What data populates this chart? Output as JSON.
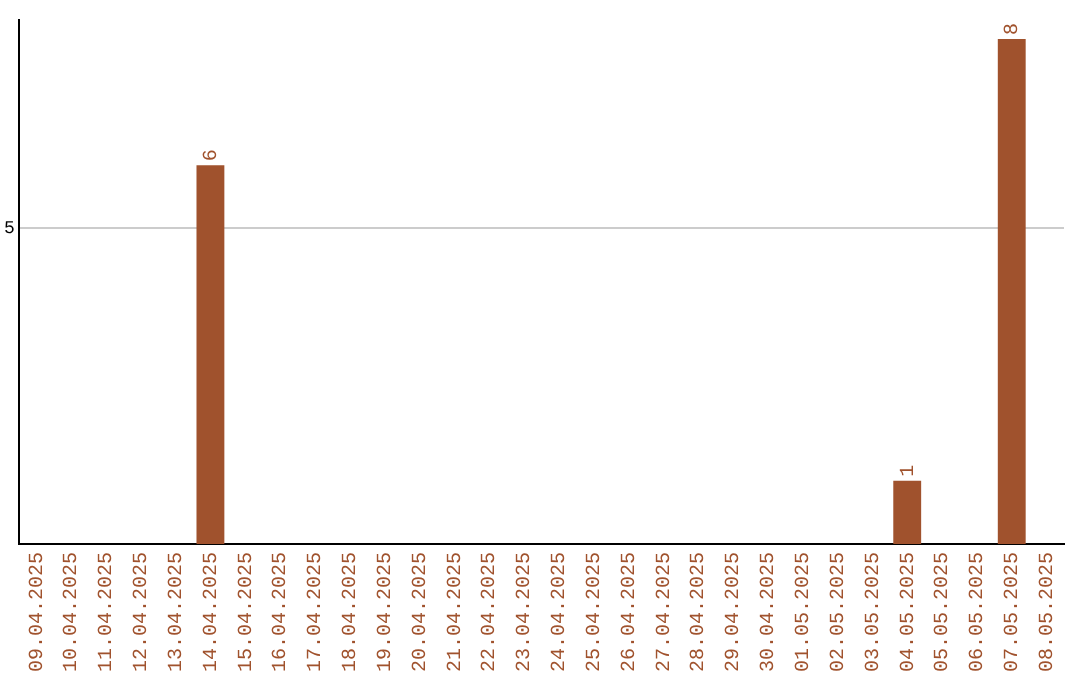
{
  "chart_data": {
    "type": "bar",
    "categories": [
      "09.04.2025",
      "10.04.2025",
      "11.04.2025",
      "12.04.2025",
      "13.04.2025",
      "14.04.2025",
      "15.04.2025",
      "16.04.2025",
      "17.04.2025",
      "18.04.2025",
      "19.04.2025",
      "20.04.2025",
      "21.04.2025",
      "22.04.2025",
      "23.04.2025",
      "24.04.2025",
      "25.04.2025",
      "26.04.2025",
      "27.04.2025",
      "28.04.2025",
      "29.04.2025",
      "30.04.2025",
      "01.05.2025",
      "02.05.2025",
      "03.05.2025",
      "04.05.2025",
      "05.05.2025",
      "06.05.2025",
      "07.05.2025",
      "08.05.2025"
    ],
    "values": [
      0,
      0,
      0,
      0,
      0,
      6,
      0,
      0,
      0,
      0,
      0,
      0,
      0,
      0,
      0,
      0,
      0,
      0,
      0,
      0,
      0,
      0,
      0,
      0,
      0,
      1,
      0,
      0,
      8,
      0
    ],
    "value_labels": [
      null,
      null,
      null,
      null,
      null,
      "6",
      null,
      null,
      null,
      null,
      null,
      null,
      null,
      null,
      null,
      null,
      null,
      null,
      null,
      null,
      null,
      null,
      null,
      null,
      null,
      "1",
      null,
      null,
      "8",
      null
    ],
    "color": "#a0522d",
    "ylim": [
      0,
      8.3
    ],
    "yticks": [
      5
    ],
    "grid": "y",
    "legend": false
  }
}
